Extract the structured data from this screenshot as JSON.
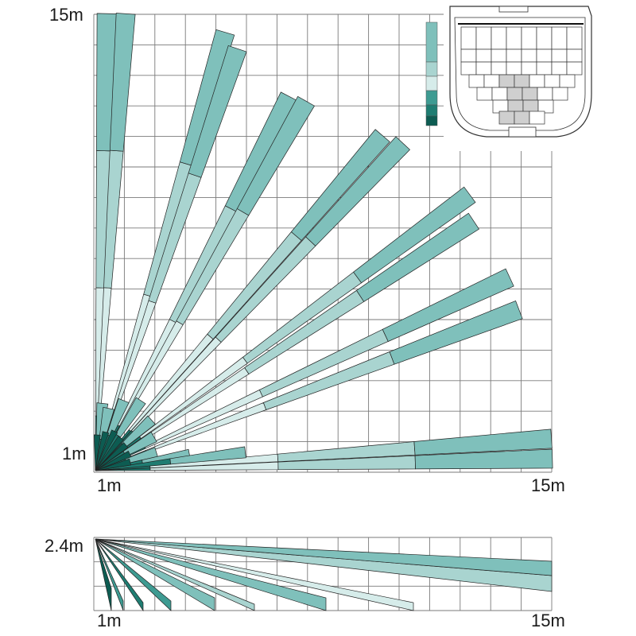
{
  "labels": {
    "top_y_max": "15m",
    "top_y_min": "1m",
    "top_x_min": "1m",
    "top_x_max": "15m",
    "side_height": "2.4m",
    "side_x_min": "1m",
    "side_x_max": "15m"
  },
  "colors": {
    "teal_light": "#d6ecea",
    "teal_mid": "#a9d4d0",
    "teal": "#7fc0bb",
    "teal_dark": "#3e9b92",
    "teal_darker": "#1f7d72",
    "teal_deepest": "#0d5c52",
    "grid": "#7a7a7a",
    "outline": "#222222"
  }
}
